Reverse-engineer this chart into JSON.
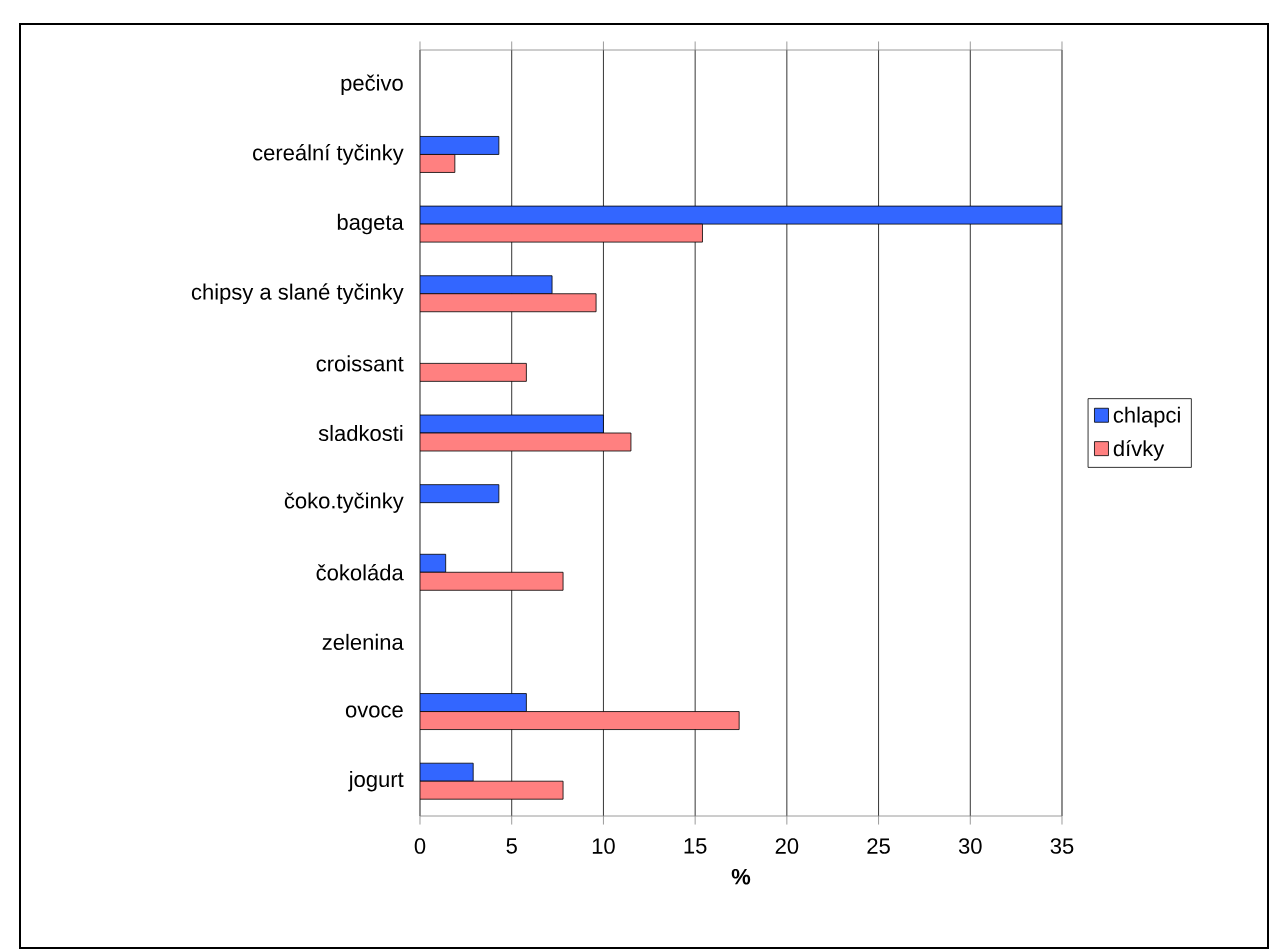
{
  "chart_data": {
    "type": "bar",
    "orientation": "horizontal",
    "xlabel": "%",
    "categories": [
      "pečivo",
      "cereální tyčinky",
      "bageta",
      "chipsy a slané tyčinky",
      "croissant",
      "sladkosti",
      "čoko.tyčinky",
      "čokoláda",
      "zelenina",
      "ovoce",
      "jogurt"
    ],
    "series": [
      {
        "name": "chlapci",
        "color": "#3366ff",
        "values": [
          null,
          4.3,
          35,
          7.2,
          null,
          10.0,
          4.3,
          1.4,
          null,
          5.8,
          2.9
        ]
      },
      {
        "name": "dívky",
        "color": "#ff8080",
        "values": [
          null,
          1.9,
          15.4,
          9.6,
          5.8,
          11.5,
          null,
          7.8,
          null,
          17.4,
          7.8
        ]
      }
    ],
    "xlim": [
      0,
      35
    ],
    "xticks": [
      0,
      5,
      10,
      15,
      20,
      25,
      30,
      35
    ],
    "grid": "x",
    "legend": "right"
  }
}
